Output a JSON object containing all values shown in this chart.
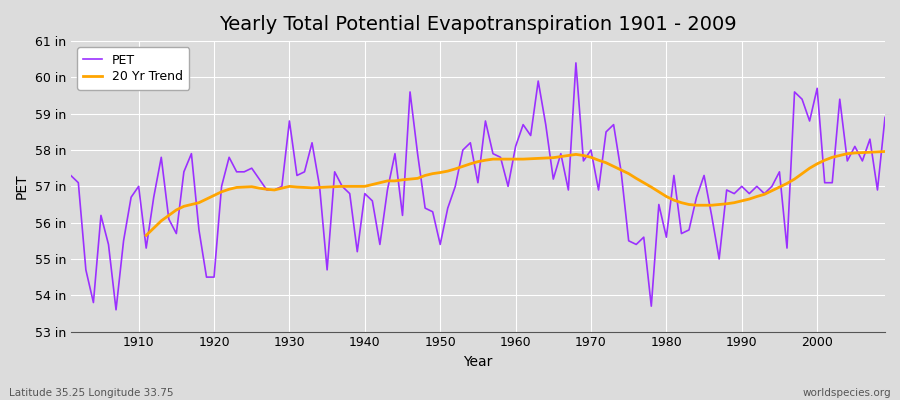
{
  "title": "Yearly Total Potential Evapotranspiration 1901 - 2009",
  "xlabel": "Year",
  "ylabel": "PET",
  "bottom_left_label": "Latitude 35.25 Longitude 33.75",
  "bottom_right_label": "worldspecies.org",
  "background_color": "#dcdcdc",
  "plot_bg_color": "#dcdcdc",
  "pet_color": "#9b30ff",
  "trend_color": "#ffa500",
  "years": [
    1901,
    1902,
    1903,
    1904,
    1905,
    1906,
    1907,
    1908,
    1909,
    1910,
    1911,
    1912,
    1913,
    1914,
    1915,
    1916,
    1917,
    1918,
    1919,
    1920,
    1921,
    1922,
    1923,
    1924,
    1925,
    1926,
    1927,
    1928,
    1929,
    1930,
    1931,
    1932,
    1933,
    1934,
    1935,
    1936,
    1937,
    1938,
    1939,
    1940,
    1941,
    1942,
    1943,
    1944,
    1945,
    1946,
    1947,
    1948,
    1949,
    1950,
    1951,
    1952,
    1953,
    1954,
    1955,
    1956,
    1957,
    1958,
    1959,
    1960,
    1961,
    1962,
    1963,
    1964,
    1965,
    1966,
    1967,
    1968,
    1969,
    1970,
    1971,
    1972,
    1973,
    1974,
    1975,
    1976,
    1977,
    1978,
    1979,
    1980,
    1981,
    1982,
    1983,
    1984,
    1985,
    1986,
    1987,
    1988,
    1989,
    1990,
    1991,
    1992,
    1993,
    1994,
    1995,
    1996,
    1997,
    1998,
    1999,
    2000,
    2001,
    2002,
    2003,
    2004,
    2005,
    2006,
    2007,
    2008,
    2009
  ],
  "pet_values": [
    57.3,
    57.1,
    54.7,
    53.8,
    56.2,
    55.4,
    53.6,
    55.5,
    56.7,
    57.0,
    55.3,
    56.7,
    57.8,
    56.1,
    55.7,
    57.4,
    57.9,
    55.8,
    54.5,
    54.5,
    57.0,
    57.8,
    57.4,
    57.4,
    57.5,
    57.2,
    56.9,
    56.9,
    57.0,
    58.8,
    57.3,
    57.4,
    58.2,
    57.0,
    54.7,
    57.4,
    57.0,
    56.8,
    55.2,
    56.8,
    56.6,
    55.4,
    56.9,
    57.9,
    56.2,
    59.6,
    57.9,
    56.4,
    56.3,
    55.4,
    56.4,
    57.0,
    58.0,
    58.2,
    57.1,
    58.8,
    57.9,
    57.8,
    57.0,
    58.1,
    58.7,
    58.4,
    59.9,
    58.7,
    57.2,
    57.9,
    56.9,
    60.4,
    57.7,
    58.0,
    56.9,
    58.5,
    58.7,
    57.4,
    55.5,
    55.4,
    55.6,
    53.7,
    56.5,
    55.6,
    57.3,
    55.7,
    55.8,
    56.7,
    57.3,
    56.2,
    55.0,
    56.9,
    56.8,
    57.0,
    56.8,
    57.0,
    56.8,
    57.0,
    57.4,
    55.3,
    59.6,
    59.4,
    58.8,
    59.7,
    57.1,
    57.1,
    59.4,
    57.7,
    58.1,
    57.7,
    58.3,
    56.9,
    58.9
  ],
  "trend_years": [
    1911,
    1912,
    1913,
    1914,
    1915,
    1916,
    1917,
    1918,
    1919,
    1920,
    1921,
    1922,
    1923,
    1924,
    1925,
    1926,
    1927,
    1928,
    1929,
    1930,
    1931,
    1932,
    1933,
    1934,
    1935,
    1936,
    1937,
    1938,
    1939,
    1940,
    1941,
    1942,
    1943,
    1944,
    1945,
    1946,
    1947,
    1948,
    1949,
    1950,
    1951,
    1952,
    1953,
    1954,
    1955,
    1956,
    1957,
    1958,
    1959,
    1960,
    1961,
    1962,
    1963,
    1964,
    1965,
    1966,
    1967,
    1968,
    1969,
    1970,
    1971,
    1972,
    1973,
    1974,
    1975,
    1976,
    1977,
    1978,
    1979,
    1980,
    1981,
    1982,
    1983,
    1984,
    1985,
    1986,
    1987,
    1988,
    1989,
    1990,
    1991,
    1992,
    1993,
    1994,
    1995,
    1996,
    1997,
    1998,
    1999,
    2000,
    2001,
    2002,
    2003,
    2004,
    2005,
    2006,
    2007,
    2008,
    2009
  ],
  "trend_values": [
    55.65,
    55.85,
    56.05,
    56.2,
    56.35,
    56.45,
    56.5,
    56.55,
    56.65,
    56.75,
    56.85,
    56.92,
    56.97,
    56.98,
    56.99,
    56.95,
    56.92,
    56.9,
    56.95,
    57.0,
    56.98,
    56.97,
    56.96,
    56.97,
    56.98,
    56.99,
    57.0,
    57.0,
    57.0,
    57.0,
    57.05,
    57.1,
    57.15,
    57.15,
    57.18,
    57.2,
    57.22,
    57.3,
    57.35,
    57.38,
    57.42,
    57.48,
    57.55,
    57.62,
    57.68,
    57.72,
    57.75,
    57.75,
    57.75,
    57.75,
    57.75,
    57.76,
    57.77,
    57.78,
    57.79,
    57.82,
    57.85,
    57.88,
    57.85,
    57.8,
    57.72,
    57.65,
    57.55,
    57.45,
    57.35,
    57.22,
    57.1,
    56.98,
    56.85,
    56.72,
    56.62,
    56.55,
    56.5,
    56.48,
    56.48,
    56.48,
    56.5,
    56.52,
    56.55,
    56.6,
    56.65,
    56.72,
    56.78,
    56.88,
    56.98,
    57.08,
    57.2,
    57.35,
    57.5,
    57.62,
    57.72,
    57.8,
    57.85,
    57.9,
    57.92,
    57.93,
    57.94,
    57.95,
    57.96
  ],
  "ylim": [
    53,
    61
  ],
  "yticks": [
    53,
    54,
    55,
    56,
    57,
    58,
    59,
    60,
    61
  ],
  "ytick_labels": [
    "53 in",
    "54 in",
    "55 in",
    "56 in",
    "57 in",
    "58 in",
    "59 in",
    "60 in",
    "61 in"
  ],
  "xtick_years": [
    1910,
    1920,
    1930,
    1940,
    1950,
    1960,
    1970,
    1980,
    1990,
    2000
  ],
  "xlim": [
    1901,
    2009
  ],
  "title_fontsize": 14,
  "label_fontsize": 10,
  "tick_fontsize": 9,
  "legend_fontsize": 9
}
